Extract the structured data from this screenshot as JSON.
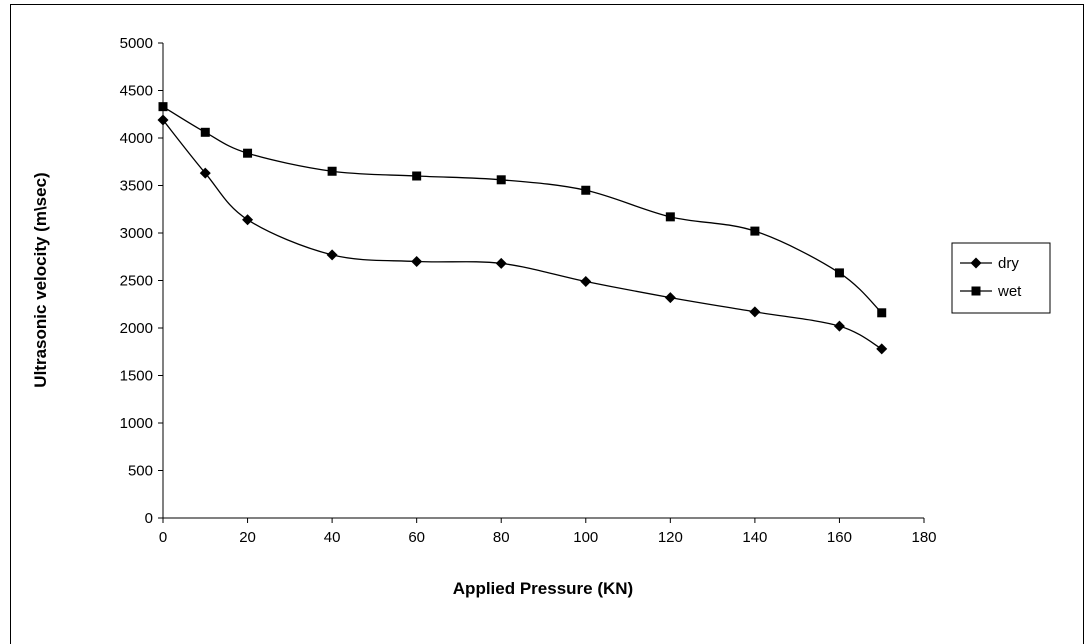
{
  "chart_data": {
    "type": "line",
    "title": "",
    "xlabel": "Applied Pressure (KN)",
    "ylabel": "Ultrasonic velocity (m\\sec)",
    "xlim": [
      0,
      180
    ],
    "ylim": [
      0,
      5000
    ],
    "x_ticks": [
      0,
      20,
      40,
      60,
      80,
      100,
      120,
      140,
      160,
      180
    ],
    "y_ticks": [
      0,
      500,
      1000,
      1500,
      2000,
      2500,
      3000,
      3500,
      4000,
      4500,
      5000
    ],
    "grid": false,
    "legend_position": "right",
    "series": [
      {
        "name": "dry",
        "marker": "diamond",
        "color": "#000000",
        "x": [
          0,
          10,
          20,
          40,
          60,
          80,
          100,
          120,
          140,
          160,
          170
        ],
        "values": [
          4190,
          3630,
          3140,
          2770,
          2700,
          2680,
          2490,
          2320,
          2170,
          2020,
          1780
        ]
      },
      {
        "name": "wet",
        "marker": "square",
        "color": "#000000",
        "x": [
          0,
          10,
          20,
          40,
          60,
          80,
          100,
          120,
          140,
          160,
          170
        ],
        "values": [
          4330,
          4060,
          3840,
          3650,
          3600,
          3560,
          3450,
          3170,
          3020,
          2580,
          2160
        ]
      }
    ]
  }
}
